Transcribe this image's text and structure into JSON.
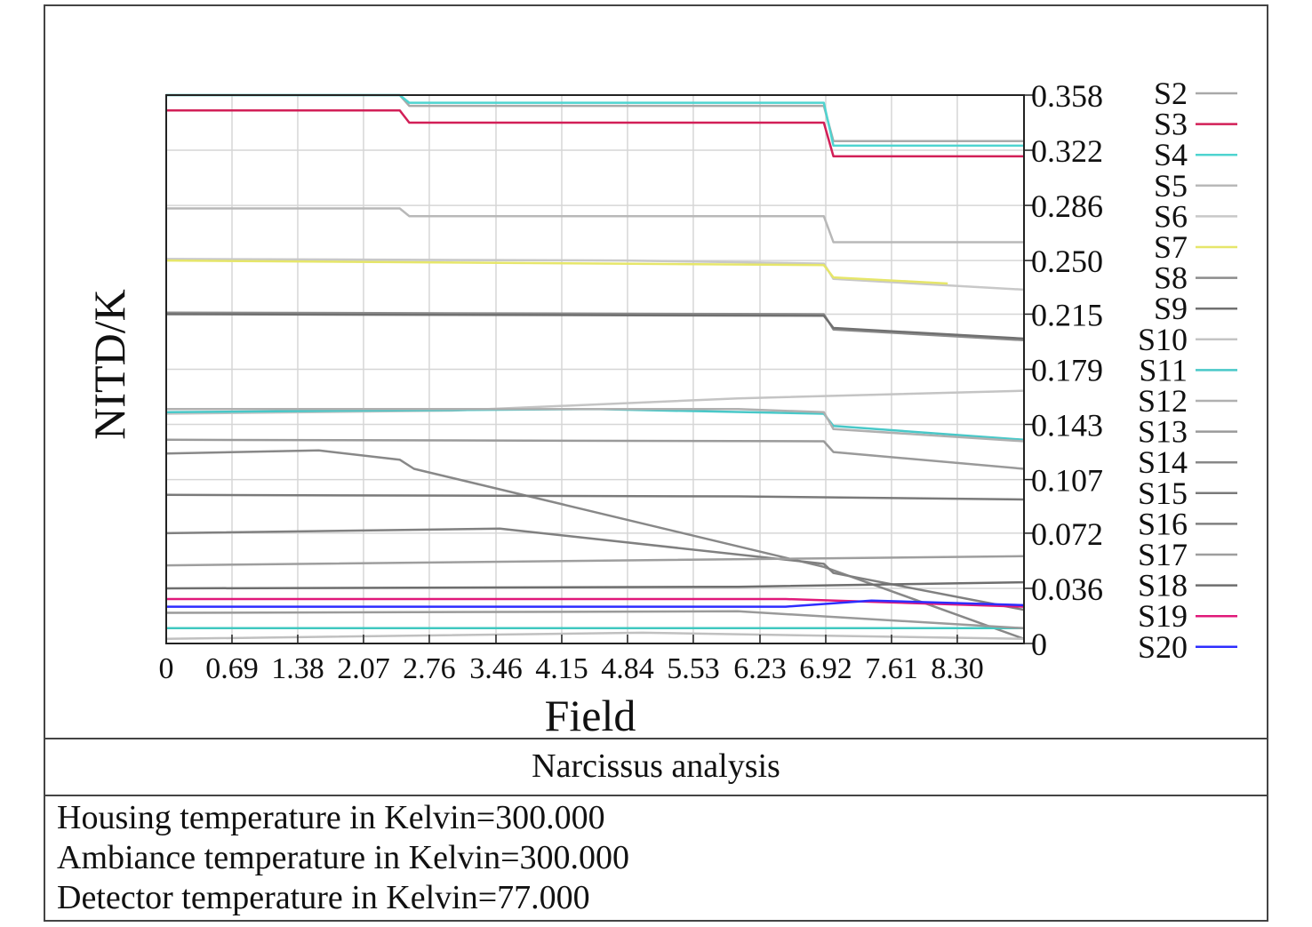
{
  "chart_data": {
    "type": "line",
    "title": "Narcissus analysis",
    "xlabel": "Field",
    "ylabel": "NITD/K",
    "xlim": [
      0,
      9.0
    ],
    "ylim": [
      0,
      0.358
    ],
    "x_ticks": [
      "0",
      "0.69",
      "1.38",
      "2.07",
      "2.76",
      "3.46",
      "4.15",
      "4.84",
      "5.53",
      "6.23",
      "6.92",
      "7.61",
      "8.30"
    ],
    "y_ticks": [
      "0.358",
      "0.322",
      "0.286",
      "0.250",
      "0.215",
      "0.179",
      "0.143",
      "0.107",
      "0.072",
      "0.036",
      "0"
    ],
    "grid": true,
    "legend_position": "right",
    "series": [
      {
        "name": "S2",
        "color": "#a9a9a9",
        "points": [
          [
            0,
            0.358
          ],
          [
            2.45,
            0.358
          ],
          [
            2.55,
            0.351
          ],
          [
            6.9,
            0.351
          ],
          [
            7.0,
            0.328
          ],
          [
            9.0,
            0.328
          ]
        ]
      },
      {
        "name": "S3",
        "color": "#d21f57",
        "points": [
          [
            0,
            0.348
          ],
          [
            2.45,
            0.348
          ],
          [
            2.55,
            0.34
          ],
          [
            6.9,
            0.34
          ],
          [
            7.0,
            0.318
          ],
          [
            9.0,
            0.318
          ]
        ]
      },
      {
        "name": "S4",
        "color": "#4fd4d0",
        "points": [
          [
            0,
            0.358
          ],
          [
            2.45,
            0.358
          ],
          [
            2.55,
            0.353
          ],
          [
            6.9,
            0.353
          ],
          [
            7.0,
            0.325
          ],
          [
            9.0,
            0.325
          ]
        ]
      },
      {
        "name": "S5",
        "color": "#b8b8b8",
        "points": [
          [
            0,
            0.284
          ],
          [
            2.45,
            0.284
          ],
          [
            2.55,
            0.279
          ],
          [
            6.9,
            0.279
          ],
          [
            7.0,
            0.262
          ],
          [
            9.0,
            0.262
          ]
        ]
      },
      {
        "name": "S6",
        "color": "#c8c8c8",
        "points": [
          [
            0,
            0.251
          ],
          [
            4.8,
            0.25
          ],
          [
            6.9,
            0.248
          ],
          [
            7.0,
            0.238
          ],
          [
            9.0,
            0.231
          ]
        ]
      },
      {
        "name": "S7",
        "color": "#e6e66a",
        "points": [
          [
            0,
            0.25
          ],
          [
            6.9,
            0.247
          ],
          [
            7.0,
            0.239
          ],
          [
            8.2,
            0.235
          ]
        ]
      },
      {
        "name": "S8",
        "color": "#8c8c8c",
        "points": [
          [
            0,
            0.216
          ],
          [
            6.9,
            0.215
          ],
          [
            7.0,
            0.205
          ],
          [
            9.0,
            0.198
          ]
        ]
      },
      {
        "name": "S9",
        "color": "#707070",
        "points": [
          [
            0,
            0.215
          ],
          [
            6.9,
            0.214
          ],
          [
            7.0,
            0.206
          ],
          [
            9.0,
            0.199
          ]
        ]
      },
      {
        "name": "S10",
        "color": "#c4c4c4",
        "points": [
          [
            0,
            0.15
          ],
          [
            3.0,
            0.152
          ],
          [
            6.0,
            0.16
          ],
          [
            9.0,
            0.165
          ]
        ]
      },
      {
        "name": "S11",
        "color": "#48c8c8",
        "points": [
          [
            0,
            0.151
          ],
          [
            2.0,
            0.152
          ],
          [
            4.5,
            0.153
          ],
          [
            6.9,
            0.15
          ],
          [
            7.0,
            0.142
          ],
          [
            9.0,
            0.133
          ]
        ]
      },
      {
        "name": "S12",
        "color": "#b0b0b0",
        "points": [
          [
            0,
            0.153
          ],
          [
            6.0,
            0.153
          ],
          [
            6.9,
            0.151
          ],
          [
            7.0,
            0.14
          ],
          [
            9.0,
            0.132
          ]
        ]
      },
      {
        "name": "S13",
        "color": "#9a9a9a",
        "points": [
          [
            0,
            0.133
          ],
          [
            6.9,
            0.132
          ],
          [
            7.0,
            0.125
          ],
          [
            9.0,
            0.114
          ]
        ]
      },
      {
        "name": "S14",
        "color": "#888888",
        "points": [
          [
            0,
            0.124
          ],
          [
            1.6,
            0.126
          ],
          [
            2.45,
            0.12
          ],
          [
            2.6,
            0.114
          ],
          [
            6.9,
            0.05
          ],
          [
            9.0,
            0.003
          ]
        ]
      },
      {
        "name": "S15",
        "color": "#7a7a7a",
        "points": [
          [
            0,
            0.097
          ],
          [
            6.0,
            0.096
          ],
          [
            9.0,
            0.094
          ]
        ]
      },
      {
        "name": "S16",
        "color": "#808080",
        "points": [
          [
            0,
            0.072
          ],
          [
            3.5,
            0.075
          ],
          [
            6.9,
            0.052
          ],
          [
            7.0,
            0.046
          ],
          [
            9.0,
            0.022
          ]
        ]
      },
      {
        "name": "S17",
        "color": "#9e9e9e",
        "points": [
          [
            0,
            0.051
          ],
          [
            4.5,
            0.054
          ],
          [
            9.0,
            0.057
          ]
        ]
      },
      {
        "name": "S18",
        "color": "#6e6e6e",
        "points": [
          [
            0,
            0.036
          ],
          [
            6.0,
            0.037
          ],
          [
            9.0,
            0.04
          ]
        ]
      },
      {
        "name": "S19",
        "color": "#e0197a",
        "points": [
          [
            0,
            0.029
          ],
          [
            6.5,
            0.029
          ],
          [
            9.0,
            0.024
          ]
        ]
      },
      {
        "name": "S20",
        "color": "#2d2dff",
        "points": [
          [
            0,
            0.024
          ],
          [
            6.5,
            0.024
          ],
          [
            7.4,
            0.028
          ],
          [
            9.0,
            0.025
          ]
        ]
      },
      {
        "name": "",
        "color": "#40c8c0",
        "points": [
          [
            0,
            0.01
          ],
          [
            9.0,
            0.01
          ]
        ]
      },
      {
        "name": "",
        "color": "#c0c0c0",
        "points": [
          [
            0,
            0.003
          ],
          [
            5.0,
            0.007
          ],
          [
            9.0,
            0.003
          ]
        ]
      },
      {
        "name": "",
        "color": "#9a9a9a",
        "points": [
          [
            0,
            0.02
          ],
          [
            6.0,
            0.021
          ],
          [
            9.0,
            0.01
          ]
        ]
      }
    ]
  },
  "footer": {
    "title": "Narcissus analysis",
    "lines": [
      "Housing temperature in Kelvin=300.000",
      "Ambiance temperature in Kelvin=300.000",
      "Detector temperature in Kelvin=77.000"
    ]
  }
}
